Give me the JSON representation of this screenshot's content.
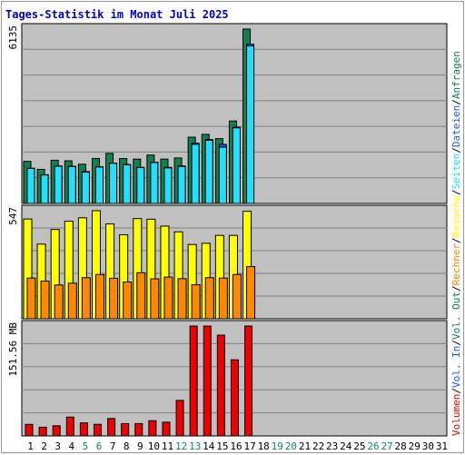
{
  "title": "Tages-Statistik im Monat Juli 2025",
  "colors": {
    "title": "#0000cc",
    "panel_bg": "#c0c0c0",
    "grid": "#808080",
    "anfragen": "#148050",
    "dateien": "#2255ee",
    "seiten": "#22e0ff",
    "besuche": "#ffff00",
    "rechner": "#ff8800",
    "vol_out": "#148050",
    "vol_in": "#2255ee",
    "volumen": "#ee0000",
    "weekday_label": "#000000",
    "weekend_label": "#118866"
  },
  "right_legend": [
    {
      "text": "Volumen",
      "color": "#ee0000"
    },
    {
      "text": "/",
      "color": "#000000"
    },
    {
      "text": "Vol. In",
      "color": "#2255ee"
    },
    {
      "text": "/",
      "color": "#000000"
    },
    {
      "text": "Vol. Out",
      "color": "#148050"
    },
    {
      "text": "/",
      "color": "#000000"
    },
    {
      "text": "Rechner",
      "color": "#ff8800"
    },
    {
      "text": "/",
      "color": "#000000"
    },
    {
      "text": "Besuche",
      "color": "#ffff00"
    },
    {
      "text": "/",
      "color": "#000000"
    },
    {
      "text": "Seiten",
      "color": "#22e0ff"
    },
    {
      "text": "/",
      "color": "#000000"
    },
    {
      "text": "Dateien",
      "color": "#2255ee"
    },
    {
      "text": "/",
      "color": "#000000"
    },
    {
      "text": "Anfragen",
      "color": "#148050"
    }
  ],
  "chart_data": [
    {
      "type": "bar",
      "panel": "hits",
      "max_label": "6135",
      "ylim": [
        0,
        6135
      ],
      "x": [
        1,
        2,
        3,
        4,
        5,
        6,
        7,
        8,
        9,
        10,
        11,
        12,
        13,
        14,
        15,
        16,
        17
      ],
      "series": [
        {
          "name": "Anfragen",
          "values": [
            1480,
            1200,
            1520,
            1500,
            1380,
            1580,
            1760,
            1580,
            1560,
            1700,
            1560,
            1600,
            2330,
            2430,
            2280,
            2900,
            6135
          ]
        },
        {
          "name": "Dateien",
          "values": [
            1240,
            1010,
            1320,
            1310,
            1120,
            1290,
            1420,
            1370,
            1270,
            1450,
            1270,
            1320,
            2120,
            2250,
            2080,
            2680,
            5600
          ]
        },
        {
          "name": "Seiten",
          "values": [
            1230,
            1000,
            1310,
            1300,
            1100,
            1280,
            1410,
            1360,
            1260,
            1440,
            1250,
            1300,
            2080,
            2220,
            1980,
            2660,
            5540
          ]
        }
      ]
    },
    {
      "type": "bar",
      "panel": "visits",
      "max_label": "547",
      "ylim": [
        0,
        547
      ],
      "x": [
        1,
        2,
        3,
        4,
        5,
        6,
        7,
        8,
        9,
        10,
        11,
        12,
        13,
        14,
        15,
        16,
        17
      ],
      "series": [
        {
          "name": "Besuche",
          "values": [
            505,
            378,
            452,
            494,
            511,
            547,
            480,
            425,
            507,
            504,
            469,
            440,
            376,
            382,
            422,
            422,
            544
          ]
        },
        {
          "name": "Rechner",
          "values": [
            206,
            191,
            171,
            180,
            208,
            224,
            205,
            186,
            233,
            202,
            211,
            203,
            172,
            208,
            206,
            224,
            264
          ]
        }
      ]
    },
    {
      "type": "bar",
      "panel": "volume",
      "max_label": "151.56 MB",
      "ylim": [
        0,
        151.56
      ],
      "x": [
        1,
        2,
        3,
        4,
        5,
        6,
        7,
        8,
        9,
        10,
        11,
        12,
        13,
        14,
        15,
        16,
        17
      ],
      "series": [
        {
          "name": "Volumen",
          "values": [
            16,
            12,
            14,
            26,
            18,
            16,
            24,
            17,
            17,
            21,
            19,
            49,
            151.56,
            151.56,
            139,
            105,
            151.56
          ]
        }
      ]
    }
  ],
  "x_axis": {
    "days": [
      "1",
      "2",
      "3",
      "4",
      "5",
      "6",
      "7",
      "8",
      "9",
      "10",
      "11",
      "12",
      "13",
      "14",
      "15",
      "16",
      "17",
      "18",
      "19",
      "20",
      "21",
      "22",
      "23",
      "24",
      "25",
      "26",
      "27",
      "28",
      "29",
      "30",
      "31"
    ],
    "weekend_days": [
      5,
      6,
      12,
      13,
      19,
      20,
      26,
      27
    ]
  }
}
